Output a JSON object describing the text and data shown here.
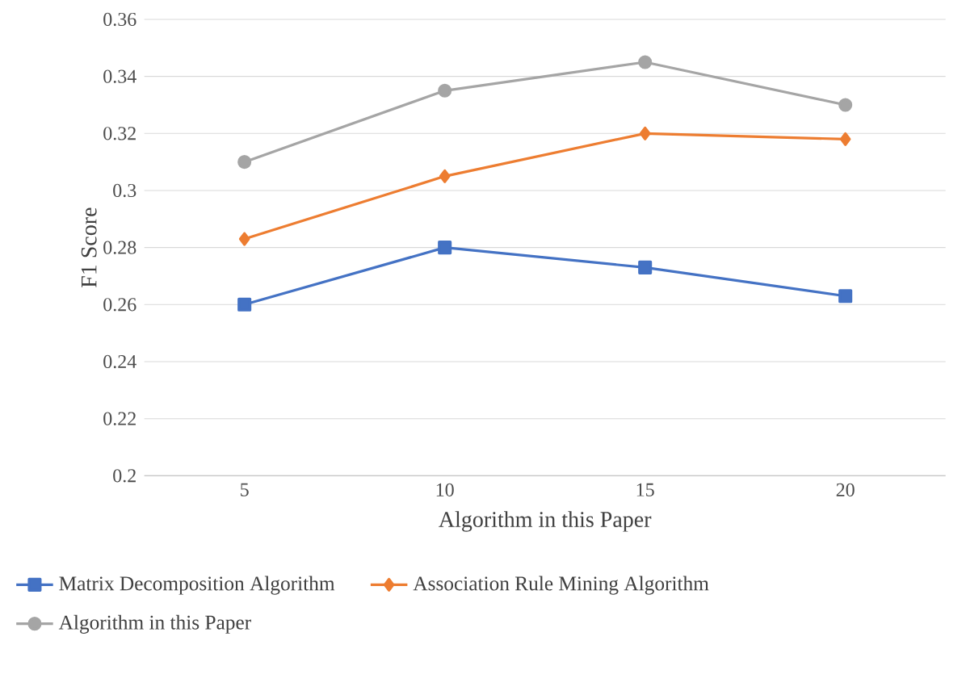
{
  "chart_data": {
    "type": "line",
    "xlabel": "Algorithm in this Paper",
    "ylabel": "F1 Score",
    "categories": [
      "5",
      "10",
      "15",
      "20"
    ],
    "series": [
      {
        "name": "Matrix Decomposition Algorithm",
        "color": "#4472c4",
        "marker": "square",
        "values": [
          0.26,
          0.28,
          0.273,
          0.263
        ]
      },
      {
        "name": "Association Rule Mining Algorithm",
        "color": "#ed7d31",
        "marker": "diamond",
        "values": [
          0.283,
          0.305,
          0.32,
          0.318
        ]
      },
      {
        "name": "Algorithm in this Paper",
        "color": "#a5a5a5",
        "marker": "circle",
        "values": [
          0.31,
          0.335,
          0.345,
          0.33
        ]
      }
    ],
    "ylim": [
      0.2,
      0.36
    ],
    "yticks": [
      0.2,
      0.22,
      0.24,
      0.26,
      0.28,
      0.3,
      0.32,
      0.34,
      0.36
    ],
    "grid": "y",
    "legend": "bottom",
    "line_style": "solid"
  }
}
